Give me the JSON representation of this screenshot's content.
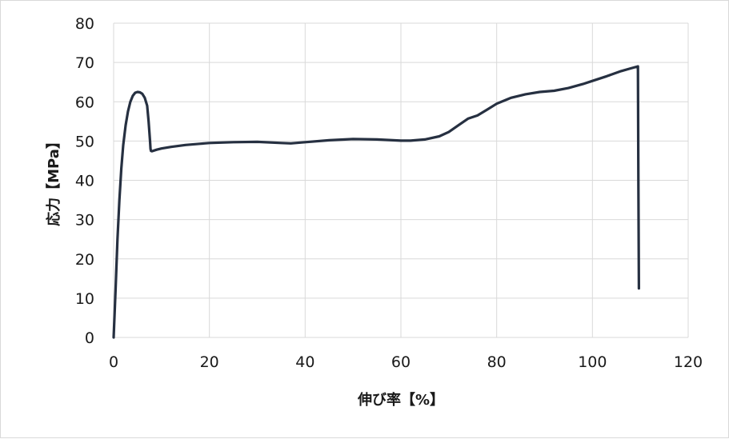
{
  "chart_data": {
    "type": "line",
    "title": "",
    "xlabel": "伸び率【%】",
    "ylabel": "応力【MPa】",
    "xlim": [
      0,
      120
    ],
    "ylim": [
      0,
      80
    ],
    "x_ticks": [
      "0",
      "20",
      "40",
      "60",
      "80",
      "100",
      "120"
    ],
    "y_ticks": [
      "0",
      "10",
      "20",
      "30",
      "40",
      "50",
      "60",
      "70",
      "80"
    ],
    "grid": true,
    "legend": "none",
    "line_color": "#263041",
    "grid_color": "#d9d9d9",
    "series": [
      {
        "x": [
          0,
          0.4,
          0.8,
          1.2,
          1.6,
          2.0,
          2.5,
          3.0,
          3.5,
          4.0,
          4.5,
          5.0,
          5.5,
          6.0,
          6.5,
          7.0,
          7.3,
          7.6,
          7.7,
          7.8,
          8.0,
          9,
          10,
          12,
          15,
          18,
          20,
          25,
          30,
          35,
          37,
          40,
          45,
          50,
          55,
          60,
          62,
          65,
          68,
          70,
          72,
          74,
          76,
          78,
          80,
          83,
          86,
          89,
          92,
          95,
          98,
          100,
          103,
          106,
          108,
          109.5,
          109.6,
          109.7
        ],
        "y": [
          0,
          12,
          25,
          35,
          43,
          49,
          54,
          57.5,
          60,
          61.5,
          62.3,
          62.5,
          62.4,
          62,
          61,
          59,
          55,
          50,
          48,
          47.5,
          47.4,
          47.8,
          48.1,
          48.5,
          49,
          49.3,
          49.5,
          49.7,
          49.8,
          49.5,
          49.4,
          49.7,
          50.2,
          50.5,
          50.4,
          50.1,
          50.1,
          50.4,
          51.2,
          52.3,
          54,
          55.7,
          56.5,
          58,
          59.5,
          61,
          61.9,
          62.5,
          62.8,
          63.5,
          64.5,
          65.3,
          66.5,
          67.8,
          68.5,
          69,
          38,
          12.5
        ]
      }
    ]
  }
}
